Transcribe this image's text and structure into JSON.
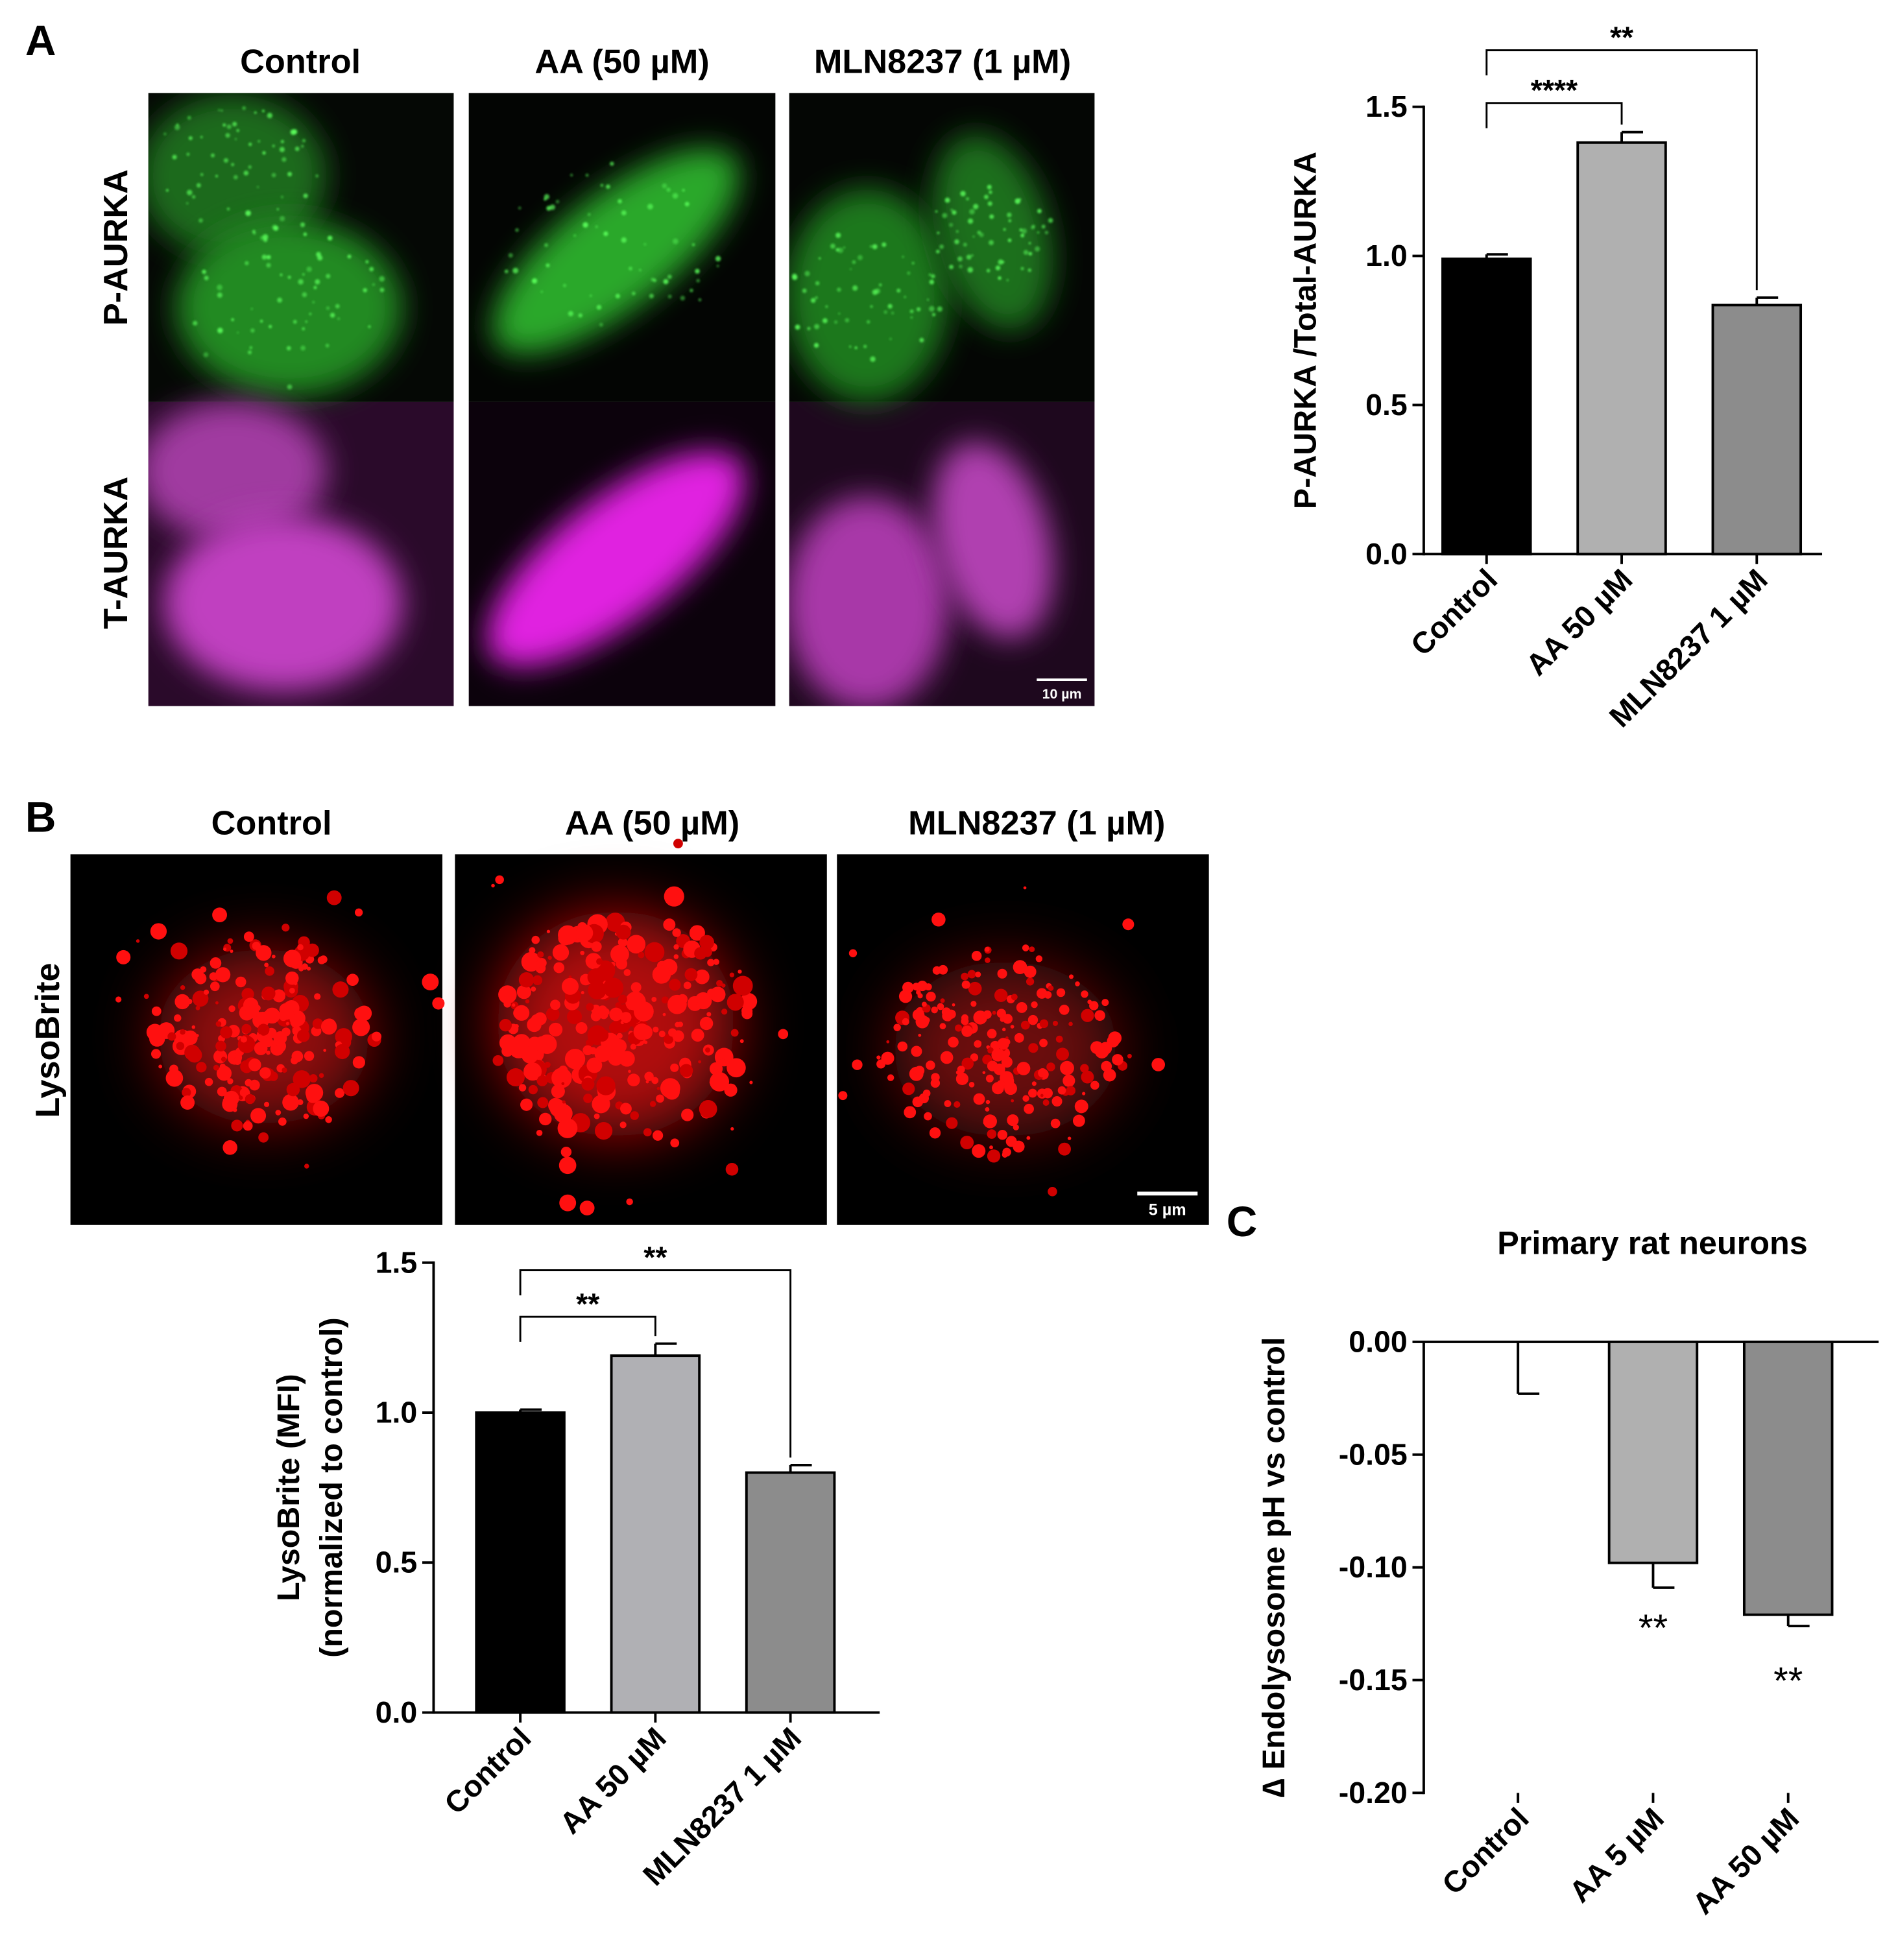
{
  "panel_labels": [
    "A",
    "B",
    "C"
  ],
  "microscopy_a": {
    "columns": [
      "Control",
      "AA (50 µM)",
      "MLN8237 (1 µM)"
    ],
    "rows": [
      "P-AURKA",
      "T-AURKA"
    ],
    "scale_bar": "10 µm"
  },
  "microscopy_b": {
    "columns": [
      "Control",
      "AA (50 µM)",
      "MLN8237 (1 µM)"
    ],
    "rows": [
      "LysoBrite"
    ],
    "scale_bar": "5 µm"
  },
  "chart_data": [
    {
      "type": "bar",
      "ylabel": [
        "P-AURKA /Total-AURKA"
      ],
      "categories": [
        "Control",
        "AA 50 µM",
        "MLN8237 1 µM"
      ],
      "values": [
        0.99,
        1.38,
        0.835
      ],
      "errors": [
        0.015,
        0.035,
        0.025
      ],
      "colors": [
        "#000000",
        "#b0b0b0",
        "#8c8c8c"
      ],
      "ylim": [
        0,
        1.5
      ],
      "yticks": [
        {
          "value": 0,
          "label": "0.0"
        },
        {
          "value": 0.5,
          "label": "0.5"
        },
        {
          "value": 1,
          "label": "1.0"
        },
        {
          "value": 1.5,
          "label": "1.5"
        }
      ],
      "brackets": [
        "****",
        "**"
      ]
    },
    {
      "type": "bar",
      "ylabel": [
        "LysoBrite (MFI)",
        "(normalized to control)"
      ],
      "categories": [
        "Control",
        "AA 50 µM",
        "MLN8237 1 µM"
      ],
      "values": [
        1.0,
        1.19,
        0.8
      ],
      "errors": [
        0.01,
        0.04,
        0.025
      ],
      "colors": [
        "#000000",
        "#b0b0b4",
        "#8c8c8c"
      ],
      "ylim": [
        0,
        1.5
      ],
      "yticks": [
        {
          "value": 0,
          "label": "0.0"
        },
        {
          "value": 0.5,
          "label": "0.5"
        },
        {
          "value": 1,
          "label": "1.0"
        },
        {
          "value": 1.5,
          "label": "1.5"
        }
      ],
      "brackets": [
        "**",
        "**"
      ]
    },
    {
      "type": "bar",
      "title": "Primary rat neurons",
      "ylabel": [
        "∆ Endolysosome pH vs control"
      ],
      "categories": [
        "Control",
        "AA 5 µM",
        "AA 50 µM"
      ],
      "values": [
        0,
        -0.098,
        -0.121
      ],
      "errors": [
        0.023,
        0.011,
        0.005
      ],
      "colors": [
        "#000000",
        "#b0b0b0",
        "#8c8c8c"
      ],
      "ylim": [
        -0.2,
        0
      ],
      "yticks": [
        {
          "value": 0,
          "label": "0.00"
        },
        {
          "value": -0.05,
          "label": "-0.05"
        },
        {
          "value": -0.1,
          "label": "-0.10"
        },
        {
          "value": -0.15,
          "label": "-0.15"
        },
        {
          "value": -0.2,
          "label": "-0.20"
        }
      ],
      "annotations": [
        "**",
        "**"
      ]
    }
  ]
}
